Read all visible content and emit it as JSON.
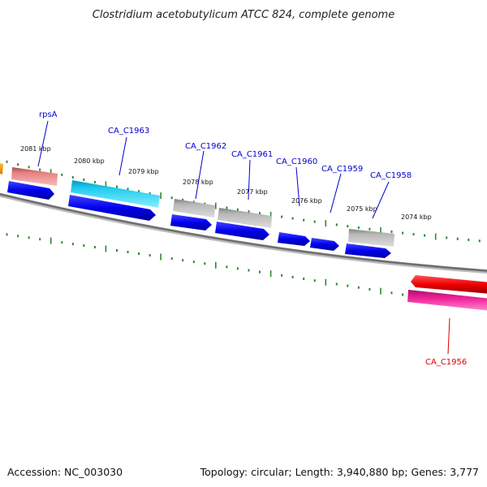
{
  "title": "Clostridium acetobutylicum ATCC 824, complete genome",
  "footer": {
    "accession": "Accession: NC_003030",
    "summary": "Topology: circular; Length: 3,940,880 bp; Genes: 3,777"
  },
  "ticks": [
    {
      "label": "2081 kbp"
    },
    {
      "label": "2080 kbp"
    },
    {
      "label": "2079 kbp"
    },
    {
      "label": "2078 kbp"
    },
    {
      "label": "2077 kbp"
    },
    {
      "label": "2076 kbp"
    },
    {
      "label": "2075 kbp"
    },
    {
      "label": "2074 kbp"
    }
  ],
  "gene_labels": [
    {
      "name": "rpsA",
      "color": "#0000cc"
    },
    {
      "name": "CA_C1963",
      "color": "#0000cc"
    },
    {
      "name": "CA_C1962",
      "color": "#0000cc"
    },
    {
      "name": "CA_C1961",
      "color": "#0000cc"
    },
    {
      "name": "CA_C1960",
      "color": "#0000cc"
    },
    {
      "name": "CA_C1959",
      "color": "#0000cc"
    },
    {
      "name": "CA_C1958",
      "color": "#0000cc"
    },
    {
      "name": "CA_C1956",
      "color": "#dd0000"
    }
  ],
  "colors": {
    "backbone": "#777777",
    "tick": "#2a8a2a",
    "cds_forward": "#0000ee",
    "rrna_cyan": "#22ccee",
    "gray_feature": "#b8b8b8",
    "salmon_feature": "#e88080",
    "red_feature": "#ee0000",
    "pink_feature": "#ee2299",
    "orange_feature": "#ff9900"
  }
}
